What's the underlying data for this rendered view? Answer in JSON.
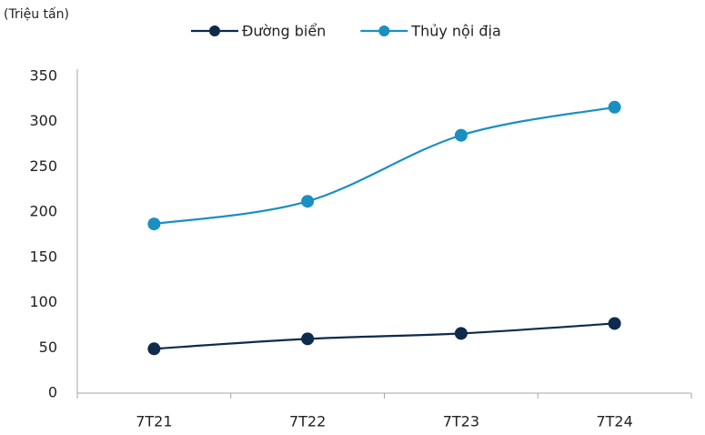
{
  "chart_data": {
    "type": "line",
    "y_label": "(Triệu tấn)",
    "categories": [
      "7T21",
      "7T22",
      "7T23",
      "7T24"
    ],
    "series": [
      {
        "name": "Đường biển",
        "color": "#0e2a4d",
        "values": [
          49,
          60,
          66,
          77
        ]
      },
      {
        "name": "Thủy nội địa",
        "color": "#1a8fc2",
        "values": [
          187,
          212,
          285,
          316
        ]
      }
    ],
    "ylim": [
      0,
      350
    ],
    "yticks": [
      0,
      50,
      100,
      150,
      200,
      250,
      300,
      350
    ],
    "grid": false,
    "smooth": true,
    "legend": "top"
  }
}
